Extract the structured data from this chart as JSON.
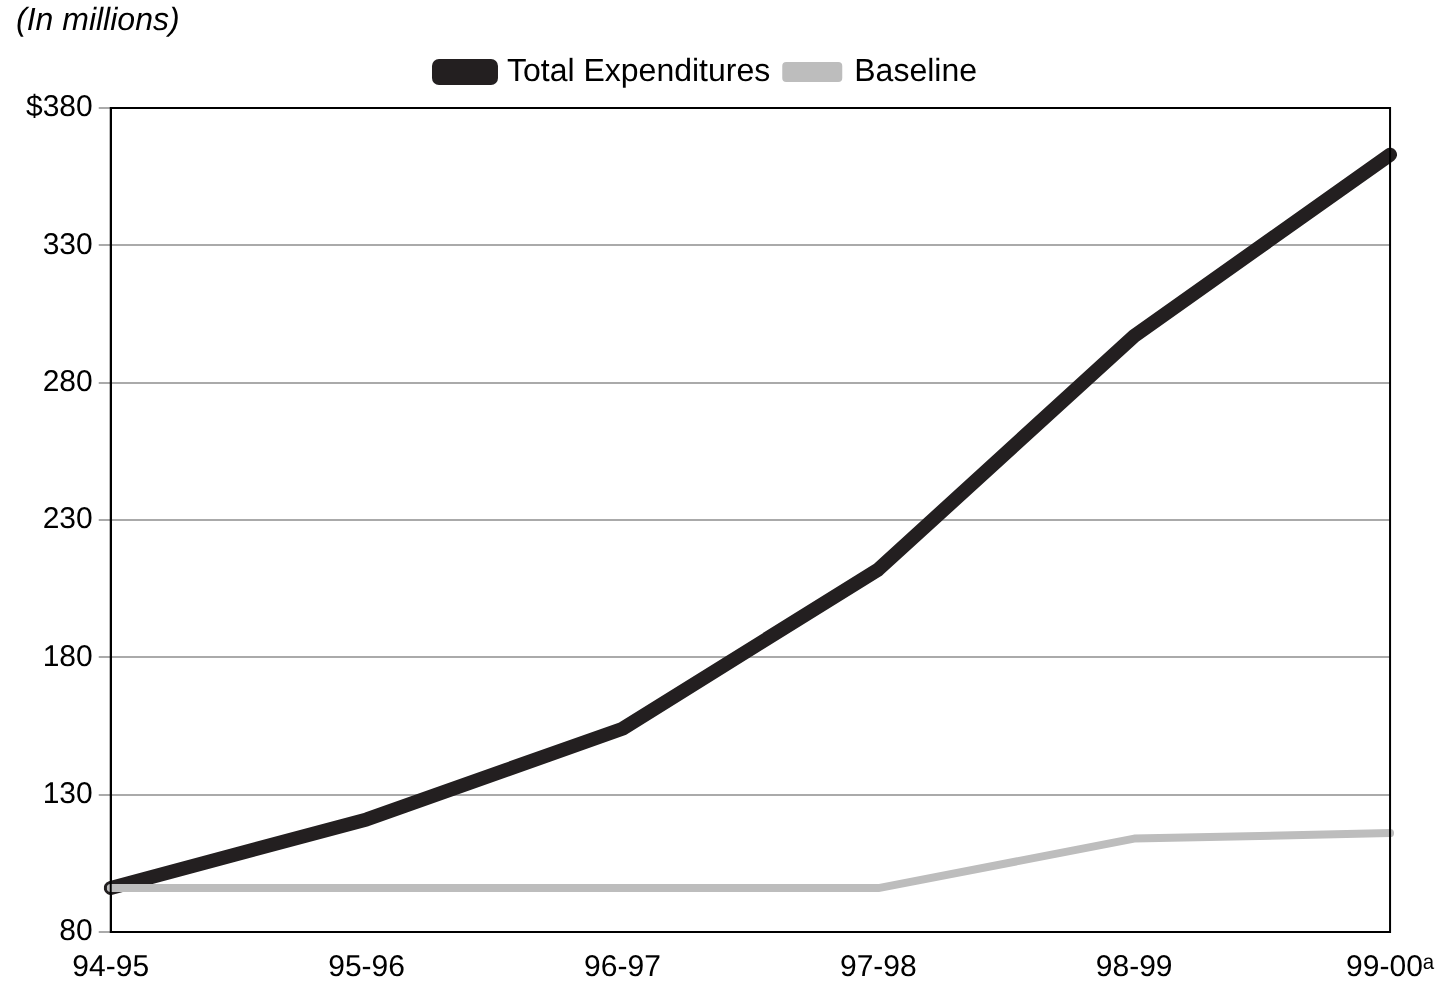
{
  "chart_data": {
    "type": "line",
    "subtitle": "(In millions)",
    "categories": [
      "94-95",
      "95-96",
      "96-97",
      "97-98",
      "98-99",
      "99-00ᵃ"
    ],
    "series": [
      {
        "name": "Total Expenditures",
        "color": "#231f20",
        "values": [
          96,
          121,
          154,
          212,
          297,
          363
        ]
      },
      {
        "name": "Baseline",
        "color": "#bdbdbd",
        "values": [
          96,
          96,
          96,
          96,
          114,
          116
        ]
      }
    ],
    "ylim": [
      80,
      380
    ],
    "yticks": [
      80,
      130,
      180,
      230,
      280,
      330,
      {
        "value": 380,
        "label": "$380"
      }
    ],
    "grid": "y",
    "legend": "top",
    "marker": "none",
    "line_style": "solid"
  }
}
